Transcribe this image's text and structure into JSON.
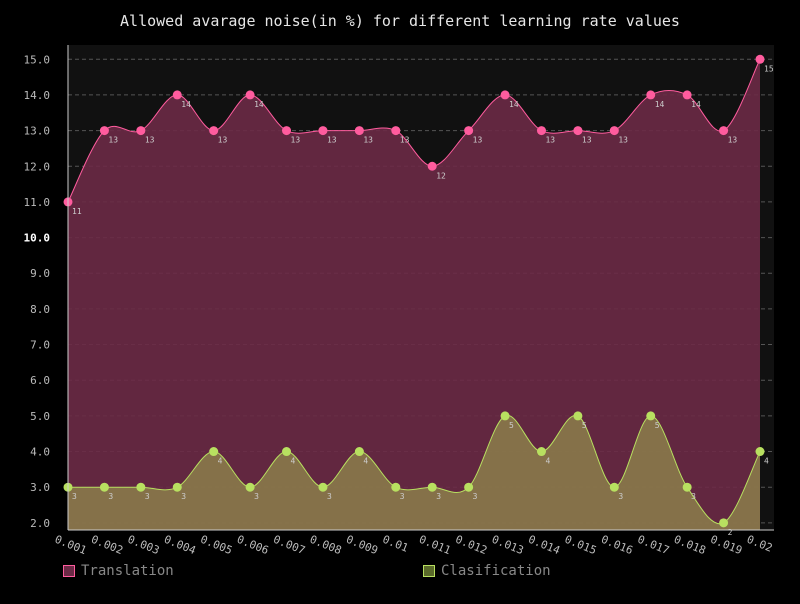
{
  "chart_data": {
    "type": "area",
    "title": "Allowed avarage noise(in %) for different learning rate values",
    "xlabel": "",
    "ylabel": "",
    "categories": [
      "0.001",
      "0.002",
      "0.003",
      "0.004",
      "0.005",
      "0.006",
      "0.007",
      "0.008",
      "0.009",
      "0.01",
      "0.011",
      "0.012",
      "0.013",
      "0.014",
      "0.015",
      "0.016",
      "0.017",
      "0.018",
      "0.019",
      "0.02"
    ],
    "ylim": [
      1.8,
      15.4
    ],
    "yticks": [
      "2.0",
      "3.0",
      "4.0",
      "5.0",
      "6.0",
      "7.0",
      "8.0",
      "9.0",
      "10.0",
      "11.0",
      "12.0",
      "13.0",
      "14.0",
      "15.0"
    ],
    "grid": true,
    "legend_position": "bottom",
    "series": [
      {
        "name": "Translation",
        "color": "#ff5c9e",
        "fill": "#6b2a46",
        "values": [
          11,
          13,
          13,
          14,
          13,
          14,
          13,
          13,
          13,
          13,
          12,
          13,
          14,
          13,
          13,
          13,
          14,
          14,
          13,
          15
        ]
      },
      {
        "name": "Clasification",
        "color": "#b8e060",
        "fill": "#8a7a4a",
        "values": [
          3,
          3,
          3,
          3,
          4,
          3,
          4,
          3,
          4,
          3,
          3,
          3,
          5,
          4,
          5,
          3,
          5,
          3,
          2,
          4
        ]
      }
    ]
  },
  "legend": {
    "items": [
      {
        "label": "Translation"
      },
      {
        "label": "Clasification"
      }
    ]
  },
  "colors": {
    "background": "#000000",
    "plot_background": "#111111",
    "grid": "#555555",
    "text": "#cccccc"
  }
}
